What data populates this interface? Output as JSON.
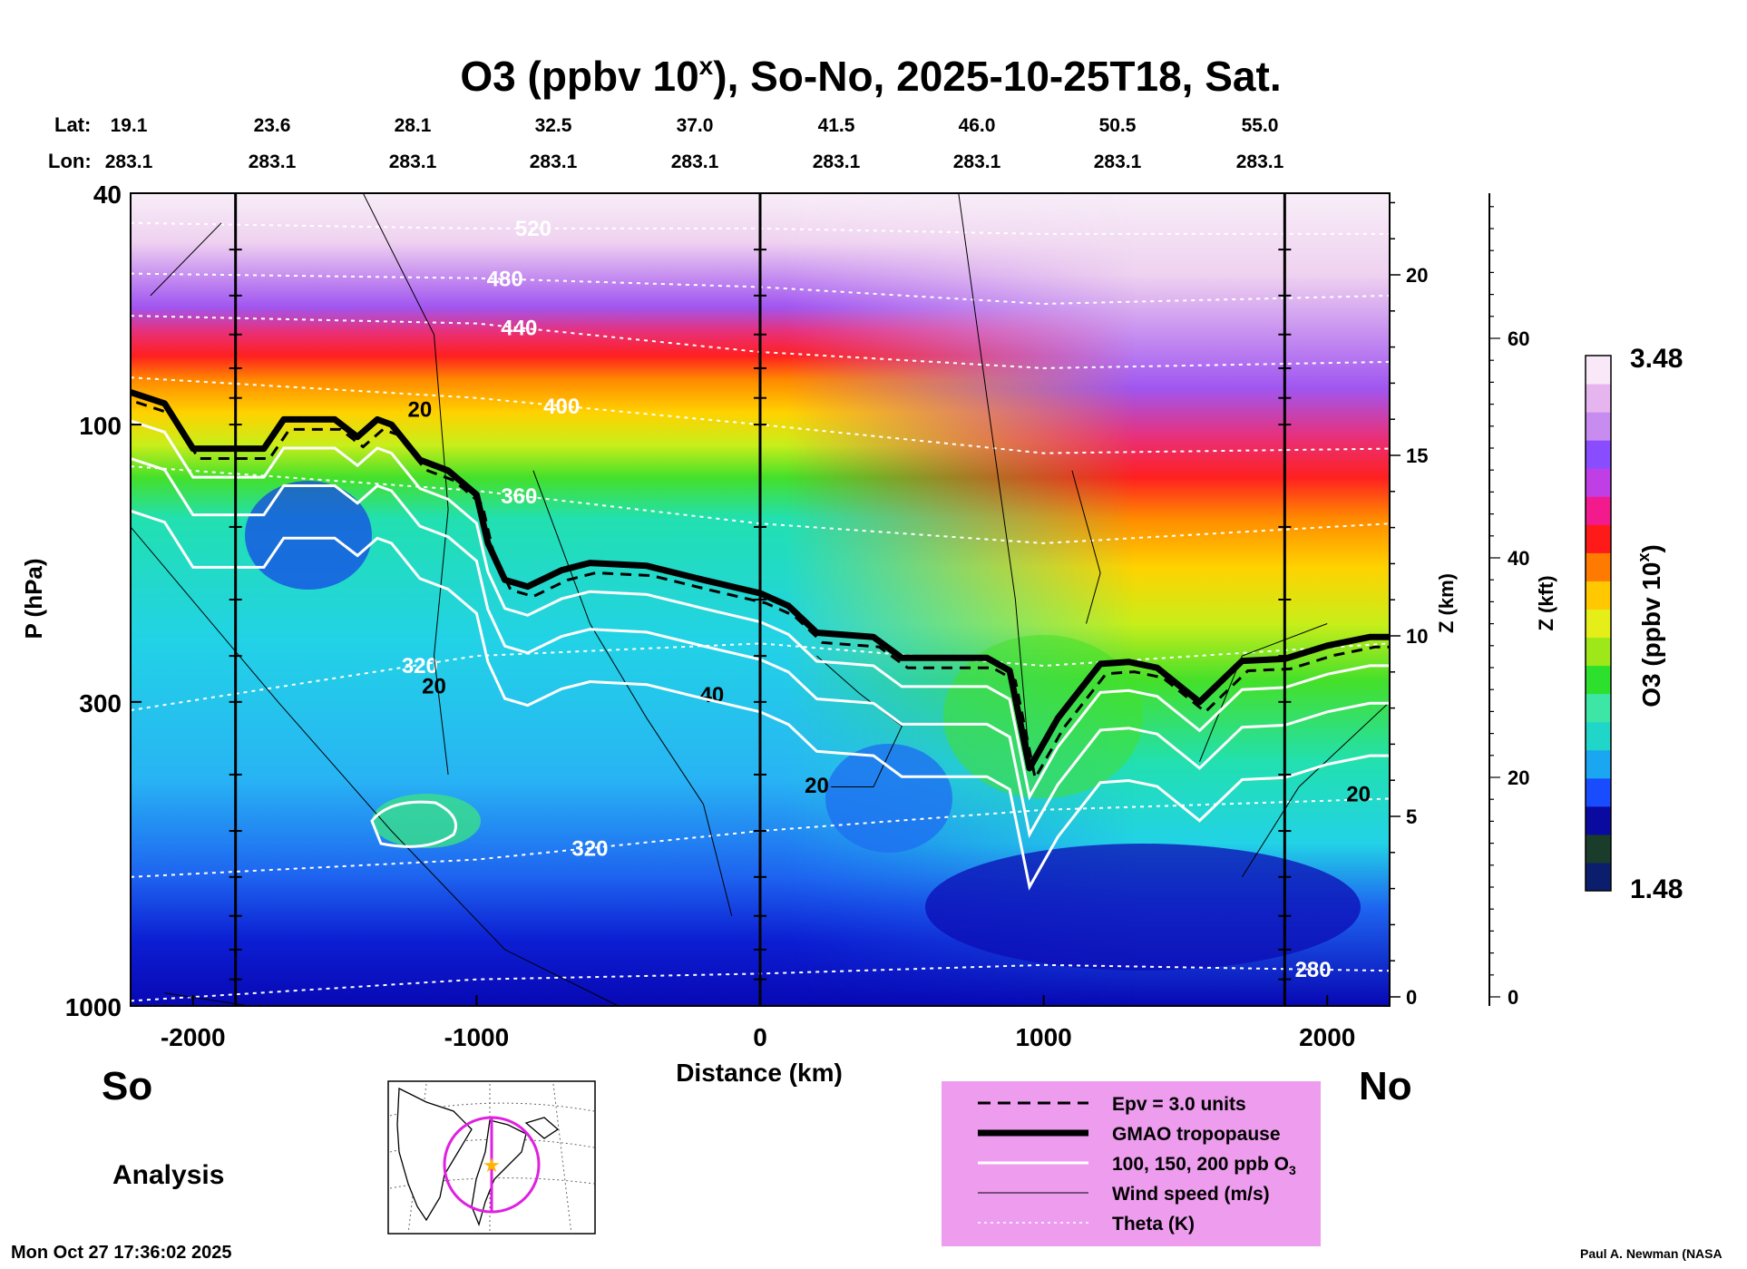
{
  "chart_data": {
    "type": "heatmap",
    "title_main": "O3 (ppbv 10",
    "title_sup": "x",
    "title_rest": "), So-No, 2025-10-25T18, Sat.",
    "lat_label": "Lat:",
    "lon_label": "Lon:",
    "lat_values": [
      "19.1",
      "23.6",
      "28.1",
      "32.5",
      "37.0",
      "41.5",
      "46.0",
      "50.5",
      "55.0"
    ],
    "lon_values": [
      "283.1",
      "283.1",
      "283.1",
      "283.1",
      "283.1",
      "283.1",
      "283.1",
      "283.1",
      "283.1"
    ],
    "xlabel": "Distance (km)",
    "xlim": [
      -2220,
      2220
    ],
    "xticks": [
      "-2000",
      "-1000",
      "0",
      "1000",
      "2000"
    ],
    "xtick_values": [
      -2000,
      -1000,
      0,
      1000,
      2000
    ],
    "ylabel": "P (hPa)",
    "ylim": [
      1000,
      40
    ],
    "yticks": [
      "40",
      "100",
      "300",
      "1000"
    ],
    "ytick_values": [
      40,
      100,
      300,
      1000
    ],
    "zkm_label": "Z (km)",
    "zkm_ticks": [
      "20",
      "15",
      "10",
      "5",
      "0"
    ],
    "zkm_values": [
      20,
      15,
      10,
      5,
      0
    ],
    "zkft_label": "Z (kft)",
    "zkft_ticks": [
      "60",
      "40",
      "20",
      "0"
    ],
    "zkft_values": [
      60,
      40,
      20,
      0
    ],
    "section_markers_km": [
      -1850,
      0,
      1850
    ],
    "colorbar_label_main": "O3 (ppbv 10",
    "colorbar_label_sup": "x",
    "colorbar_label_rest": ")",
    "colorbar_min": "1.48",
    "colorbar_max": "3.48",
    "colorbar_colors": [
      "#0b1e6e",
      "#1a3c2a",
      "#0a0aa0",
      "#1a4cff",
      "#1aa6f0",
      "#20d6c8",
      "#3ee6a6",
      "#2ee02e",
      "#9ee81a",
      "#e6ee1a",
      "#ffc800",
      "#ff7a00",
      "#ff1a1a",
      "#f21a8c",
      "#c03ee6",
      "#8a4cff",
      "#c88cf0",
      "#e6b4ee",
      "#f8e8f8"
    ],
    "tropopause": [
      [
        -2220,
        88
      ],
      [
        -2100,
        92
      ],
      [
        -2000,
        110
      ],
      [
        -1850,
        110
      ],
      [
        -1750,
        110
      ],
      [
        -1680,
        98
      ],
      [
        -1500,
        98
      ],
      [
        -1420,
        105
      ],
      [
        -1350,
        98
      ],
      [
        -1300,
        100
      ],
      [
        -1200,
        115
      ],
      [
        -1100,
        120
      ],
      [
        -1000,
        132
      ],
      [
        -960,
        160
      ],
      [
        -900,
        185
      ],
      [
        -820,
        190
      ],
      [
        -700,
        178
      ],
      [
        -600,
        173
      ],
      [
        -400,
        175
      ],
      [
        -200,
        185
      ],
      [
        0,
        195
      ],
      [
        100,
        205
      ],
      [
        200,
        228
      ],
      [
        300,
        230
      ],
      [
        400,
        232
      ],
      [
        500,
        252
      ],
      [
        600,
        252
      ],
      [
        700,
        252
      ],
      [
        800,
        252
      ],
      [
        880,
        265
      ],
      [
        950,
        390
      ],
      [
        1050,
        320
      ],
      [
        1200,
        258
      ],
      [
        1300,
        256
      ],
      [
        1400,
        262
      ],
      [
        1550,
        300
      ],
      [
        1700,
        255
      ],
      [
        1850,
        253
      ],
      [
        2000,
        240
      ],
      [
        2150,
        232
      ],
      [
        2220,
        232
      ]
    ],
    "theta_isentropes": [
      {
        "label": "520",
        "points": [
          [
            -2220,
            45
          ],
          [
            -1000,
            46
          ],
          [
            0,
            46
          ],
          [
            1000,
            47
          ],
          [
            2220,
            47
          ]
        ]
      },
      {
        "label": "480",
        "points": [
          [
            -2220,
            55
          ],
          [
            -1000,
            56
          ],
          [
            0,
            58
          ],
          [
            1000,
            62
          ],
          [
            2220,
            60
          ]
        ]
      },
      {
        "label": "440",
        "points": [
          [
            -2220,
            65
          ],
          [
            -1000,
            67
          ],
          [
            0,
            75
          ],
          [
            1000,
            80
          ],
          [
            2220,
            78
          ]
        ]
      },
      {
        "label": "400",
        "points": [
          [
            -2220,
            83
          ],
          [
            -1000,
            90
          ],
          [
            0,
            100
          ],
          [
            1000,
            112
          ],
          [
            2220,
            110
          ]
        ]
      },
      {
        "label": "360",
        "points": [
          [
            -2220,
            118
          ],
          [
            -1000,
            130
          ],
          [
            0,
            148
          ],
          [
            1000,
            160
          ],
          [
            2220,
            148
          ]
        ]
      },
      {
        "label": "320",
        "points": [
          [
            -2220,
            310
          ],
          [
            -1000,
            250
          ],
          [
            0,
            238
          ],
          [
            1000,
            260
          ],
          [
            2220,
            238
          ]
        ]
      },
      {
        "label": "320",
        "points": [
          [
            -2220,
            600
          ],
          [
            -1000,
            560
          ],
          [
            0,
            500
          ],
          [
            1000,
            460
          ],
          [
            2220,
            440
          ]
        ]
      },
      {
        "label": "280",
        "points": [
          [
            -2220,
            980
          ],
          [
            -1000,
            900
          ],
          [
            0,
            880
          ],
          [
            1000,
            850
          ],
          [
            2220,
            870
          ]
        ]
      }
    ],
    "wind_labels": [
      {
        "label": "20",
        "x": -1200,
        "p": 97
      },
      {
        "label": "20",
        "x": -1150,
        "p": 290
      },
      {
        "label": "40",
        "x": -170,
        "p": 300
      },
      {
        "label": "20",
        "x": 200,
        "p": 430
      },
      {
        "label": "20",
        "x": 2110,
        "p": 445
      }
    ]
  },
  "legend": {
    "items": [
      {
        "label": "Epv = 3.0 units",
        "style": "dashed"
      },
      {
        "label": "GMAO tropopause",
        "style": "thick"
      },
      {
        "label": "100, 150, 200 ppb O",
        "sub": "3",
        "style": "white"
      },
      {
        "label": "Wind speed (m/s)",
        "style": "thin"
      },
      {
        "label": "Theta (K)",
        "style": "dotted"
      }
    ]
  },
  "labels": {
    "south": "So",
    "north": "No",
    "analysis": "Analysis",
    "timestamp": "Mon Oct 27 17:36:02 2025",
    "credit": "Paul A. Newman (NASA"
  },
  "colors": {
    "legend_bg": "#ee9cee",
    "tropopause": "#000000",
    "ozone_contour": "#ffffff",
    "map_track": "#e020e0",
    "star": "#ffb400"
  }
}
